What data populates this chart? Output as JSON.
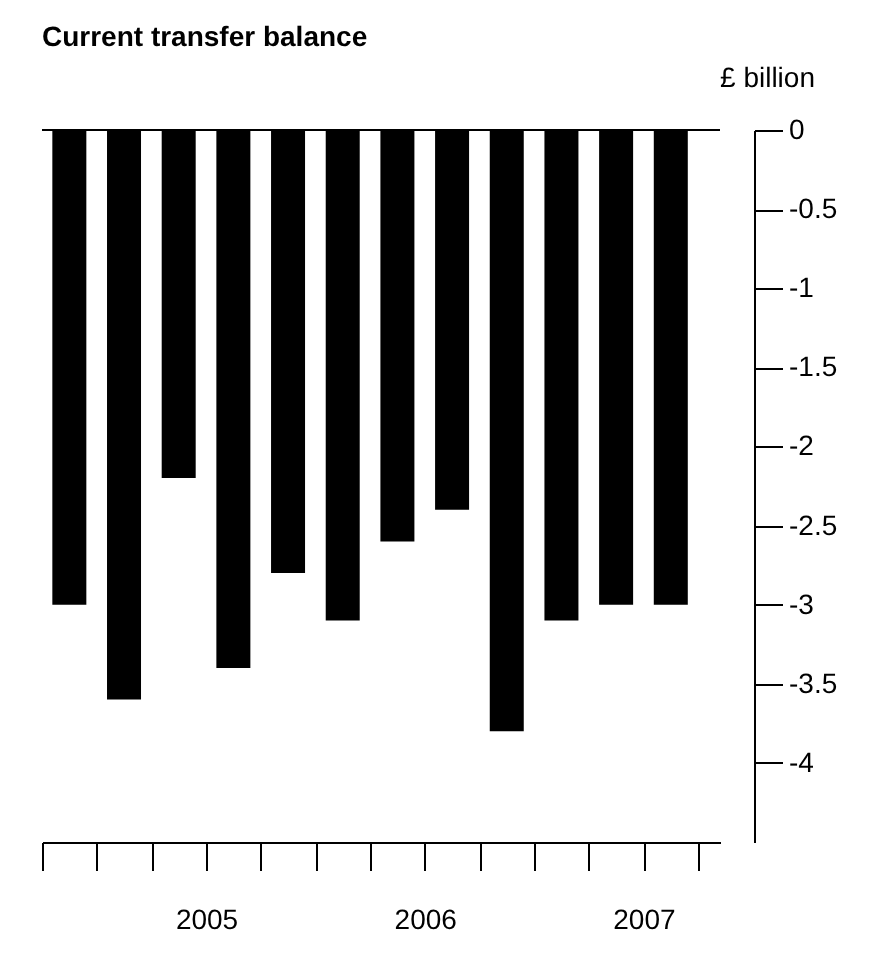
{
  "chart_data": {
    "type": "bar",
    "title": "Current transfer balance",
    "ylabel": "£ billion",
    "x": [
      2004.875,
      2005.125,
      2005.375,
      2005.625,
      2005.875,
      2006.125,
      2006.375,
      2006.625,
      2006.875,
      2007.125,
      2007.375,
      2007.625
    ],
    "values": [
      -3.0,
      -3.6,
      -2.2,
      -3.4,
      -2.8,
      -3.1,
      -2.6,
      -2.4,
      -3.8,
      -3.1,
      -3.0,
      -3.0
    ],
    "color": "#000000",
    "xlim": [
      2004.75,
      2007.85
    ],
    "xticks": [
      {
        "value": 2004.75,
        "label": null
      },
      {
        "value": 2005,
        "label": null
      },
      {
        "value": 2005.25,
        "label": null
      },
      {
        "value": 2005.5,
        "label": "2005"
      },
      {
        "value": 2005.75,
        "label": null
      },
      {
        "value": 2006,
        "label": null
      },
      {
        "value": 2006.25,
        "label": null
      },
      {
        "value": 2006.5,
        "label": "2006"
      },
      {
        "value": 2006.75,
        "label": null
      },
      {
        "value": 2007,
        "label": null
      },
      {
        "value": 2007.25,
        "label": null
      },
      {
        "value": 2007.5,
        "label": "2007"
      },
      {
        "value": 2007.75,
        "label": null
      }
    ],
    "ylim": [
      -4.5,
      0
    ],
    "yticks": [
      0,
      -0.5,
      -1,
      -1.5,
      -2,
      -2.5,
      -3,
      -3.5,
      -4
    ],
    "ref_lines": [
      {
        "axis": "y",
        "value": 0
      }
    ],
    "grid": false
  }
}
